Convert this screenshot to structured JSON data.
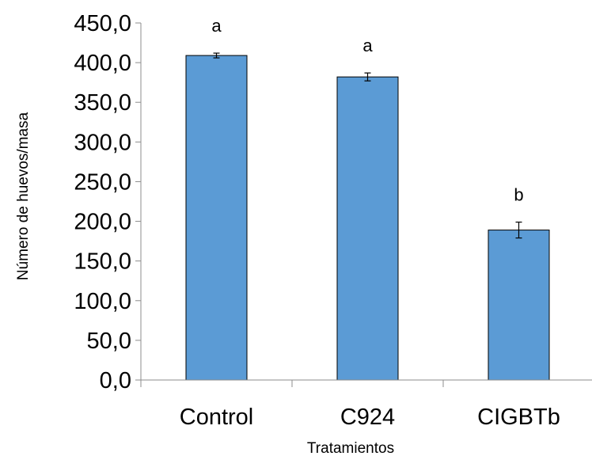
{
  "chart_data": {
    "type": "bar",
    "categories": [
      "Control",
      "C924",
      "CIGBTb"
    ],
    "values": [
      409,
      382,
      189
    ],
    "error": [
      3,
      5,
      10
    ],
    "significance": [
      "a",
      "a",
      "b"
    ],
    "xlabel": "Tratamientos",
    "ylabel": "Número de huevos/masa",
    "ylim": [
      0,
      450
    ],
    "yticks": [
      0,
      50,
      100,
      150,
      200,
      250,
      300,
      350,
      400,
      450
    ],
    "ytick_labels": [
      "0,0",
      "50,0",
      "100,0",
      "150,0",
      "200,0",
      "250,0",
      "300,0",
      "350,0",
      "400,0",
      "450,0"
    ],
    "grid": false,
    "legend": "none",
    "bar_color": "#5b9bd5",
    "bar_outline_color": "#000000"
  }
}
